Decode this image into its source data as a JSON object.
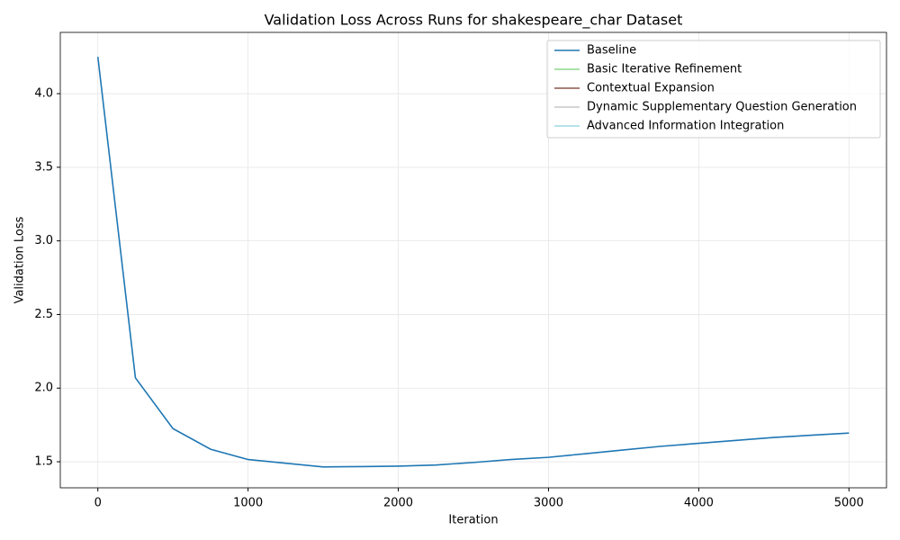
{
  "chart_data": {
    "type": "line",
    "title": "Validation Loss Across Runs for shakespeare_char Dataset",
    "xlabel": "Iteration",
    "ylabel": "Validation Loss",
    "x": [
      0,
      250,
      500,
      750,
      1000,
      1250,
      1500,
      1750,
      2000,
      2250,
      2500,
      2750,
      3000,
      3250,
      3500,
      3750,
      4000,
      4250,
      4500,
      4750,
      5000
    ],
    "series": [
      {
        "name": "Baseline",
        "color": "#1f77b4",
        "values": [
          4.25,
          2.07,
          1.725,
          1.585,
          1.515,
          1.49,
          1.465,
          1.467,
          1.47,
          1.478,
          1.495,
          1.515,
          1.53,
          1.555,
          1.58,
          1.605,
          1.625,
          1.645,
          1.665,
          1.68,
          1.695
        ]
      },
      {
        "name": "Basic Iterative Refinement",
        "color": "#8fd98a",
        "values": [
          null,
          null,
          null,
          null,
          null,
          null,
          null,
          null,
          null,
          null,
          null,
          null,
          null,
          null,
          null,
          null,
          null,
          null,
          null,
          null,
          null
        ]
      },
      {
        "name": "Contextual Expansion",
        "color": "#8c564b",
        "values": [
          null,
          null,
          null,
          null,
          null,
          null,
          null,
          null,
          null,
          null,
          null,
          null,
          null,
          null,
          null,
          null,
          null,
          null,
          null,
          null,
          null
        ]
      },
      {
        "name": "Dynamic Supplementary Question Generation",
        "color": "#c7c7c7",
        "values": [
          null,
          null,
          null,
          null,
          null,
          null,
          null,
          null,
          null,
          null,
          null,
          null,
          null,
          null,
          null,
          null,
          null,
          null,
          null,
          null,
          null
        ]
      },
      {
        "name": "Advanced Information Integration",
        "color": "#9edae5",
        "values": [
          null,
          null,
          null,
          null,
          null,
          null,
          null,
          null,
          null,
          null,
          null,
          null,
          null,
          null,
          null,
          null,
          null,
          null,
          null,
          null,
          null
        ]
      }
    ],
    "xlim": [
      -250,
      5250
    ],
    "xticks": [
      0,
      1000,
      2000,
      3000,
      4000,
      5000
    ],
    "ylim": [
      1.323,
      4.416
    ],
    "yticks": [
      1.5,
      {
        "value": 2,
        "label": "2.0"
      },
      2.5,
      {
        "value": 3,
        "label": "3.0"
      },
      3.5,
      {
        "value": 4,
        "label": "4.0"
      }
    ],
    "grid": true,
    "legend": "upper right"
  }
}
